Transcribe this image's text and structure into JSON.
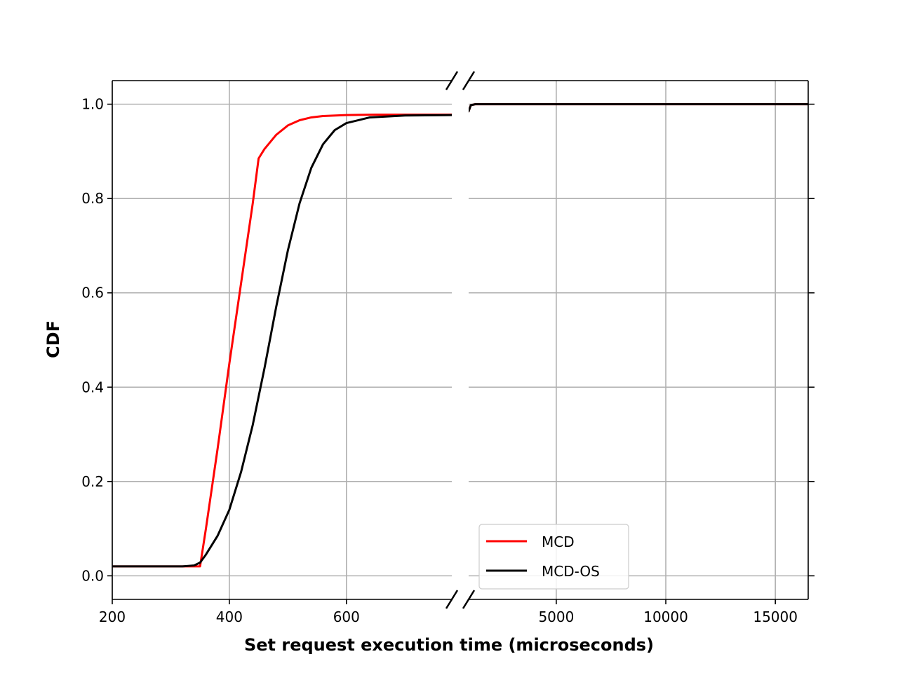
{
  "chart_data": {
    "type": "line",
    "xlabel": "Set request execution time (microseconds)",
    "ylabel": "CDF",
    "broken_x_axis": true,
    "grid": true,
    "legend_placement": "lower-right",
    "panels": [
      {
        "name": "left",
        "xlim": [
          200,
          780
        ],
        "ylim": [
          -0.05,
          1.05
        ],
        "xticks": [
          200,
          400,
          600
        ],
        "tick_labels": [
          "200",
          "400",
          "600"
        ]
      },
      {
        "name": "right",
        "xlim": [
          1000,
          16500
        ],
        "ylim": [
          -0.05,
          1.05
        ],
        "xticks": [
          5000,
          10000,
          15000
        ],
        "tick_labels": [
          "5000",
          "10000",
          "15000"
        ]
      }
    ],
    "yticks": [
      0.0,
      0.2,
      0.4,
      0.6,
      0.8,
      1.0
    ],
    "ytick_labels": [
      "0.0",
      "0.2",
      "0.4",
      "0.6",
      "0.8",
      "1.0"
    ],
    "series": [
      {
        "name": "MCD",
        "color": "#ff0000",
        "points": [
          [
            200,
            0.02
          ],
          [
            300,
            0.02
          ],
          [
            350,
            0.02
          ],
          [
            360,
            0.1
          ],
          [
            380,
            0.27
          ],
          [
            400,
            0.45
          ],
          [
            420,
            0.62
          ],
          [
            440,
            0.79
          ],
          [
            450,
            0.885
          ],
          [
            460,
            0.905
          ],
          [
            480,
            0.935
          ],
          [
            500,
            0.955
          ],
          [
            520,
            0.966
          ],
          [
            540,
            0.972
          ],
          [
            560,
            0.975
          ],
          [
            600,
            0.977
          ],
          [
            650,
            0.978
          ],
          [
            780,
            0.978
          ],
          [
            1000,
            0.985
          ],
          [
            1100,
            0.998
          ],
          [
            1300,
            1.0
          ],
          [
            16500,
            1.0
          ]
        ]
      },
      {
        "name": "MCD-OS",
        "color": "#000000",
        "points": [
          [
            200,
            0.02
          ],
          [
            320,
            0.02
          ],
          [
            340,
            0.022
          ],
          [
            350,
            0.028
          ],
          [
            360,
            0.045
          ],
          [
            380,
            0.085
          ],
          [
            400,
            0.14
          ],
          [
            420,
            0.22
          ],
          [
            440,
            0.32
          ],
          [
            460,
            0.44
          ],
          [
            480,
            0.57
          ],
          [
            500,
            0.69
          ],
          [
            520,
            0.79
          ],
          [
            540,
            0.865
          ],
          [
            560,
            0.915
          ],
          [
            580,
            0.945
          ],
          [
            600,
            0.96
          ],
          [
            640,
            0.972
          ],
          [
            700,
            0.976
          ],
          [
            780,
            0.977
          ],
          [
            1000,
            0.985
          ],
          [
            1100,
            0.998
          ],
          [
            1300,
            1.0
          ],
          [
            16500,
            1.0
          ]
        ]
      }
    ]
  }
}
